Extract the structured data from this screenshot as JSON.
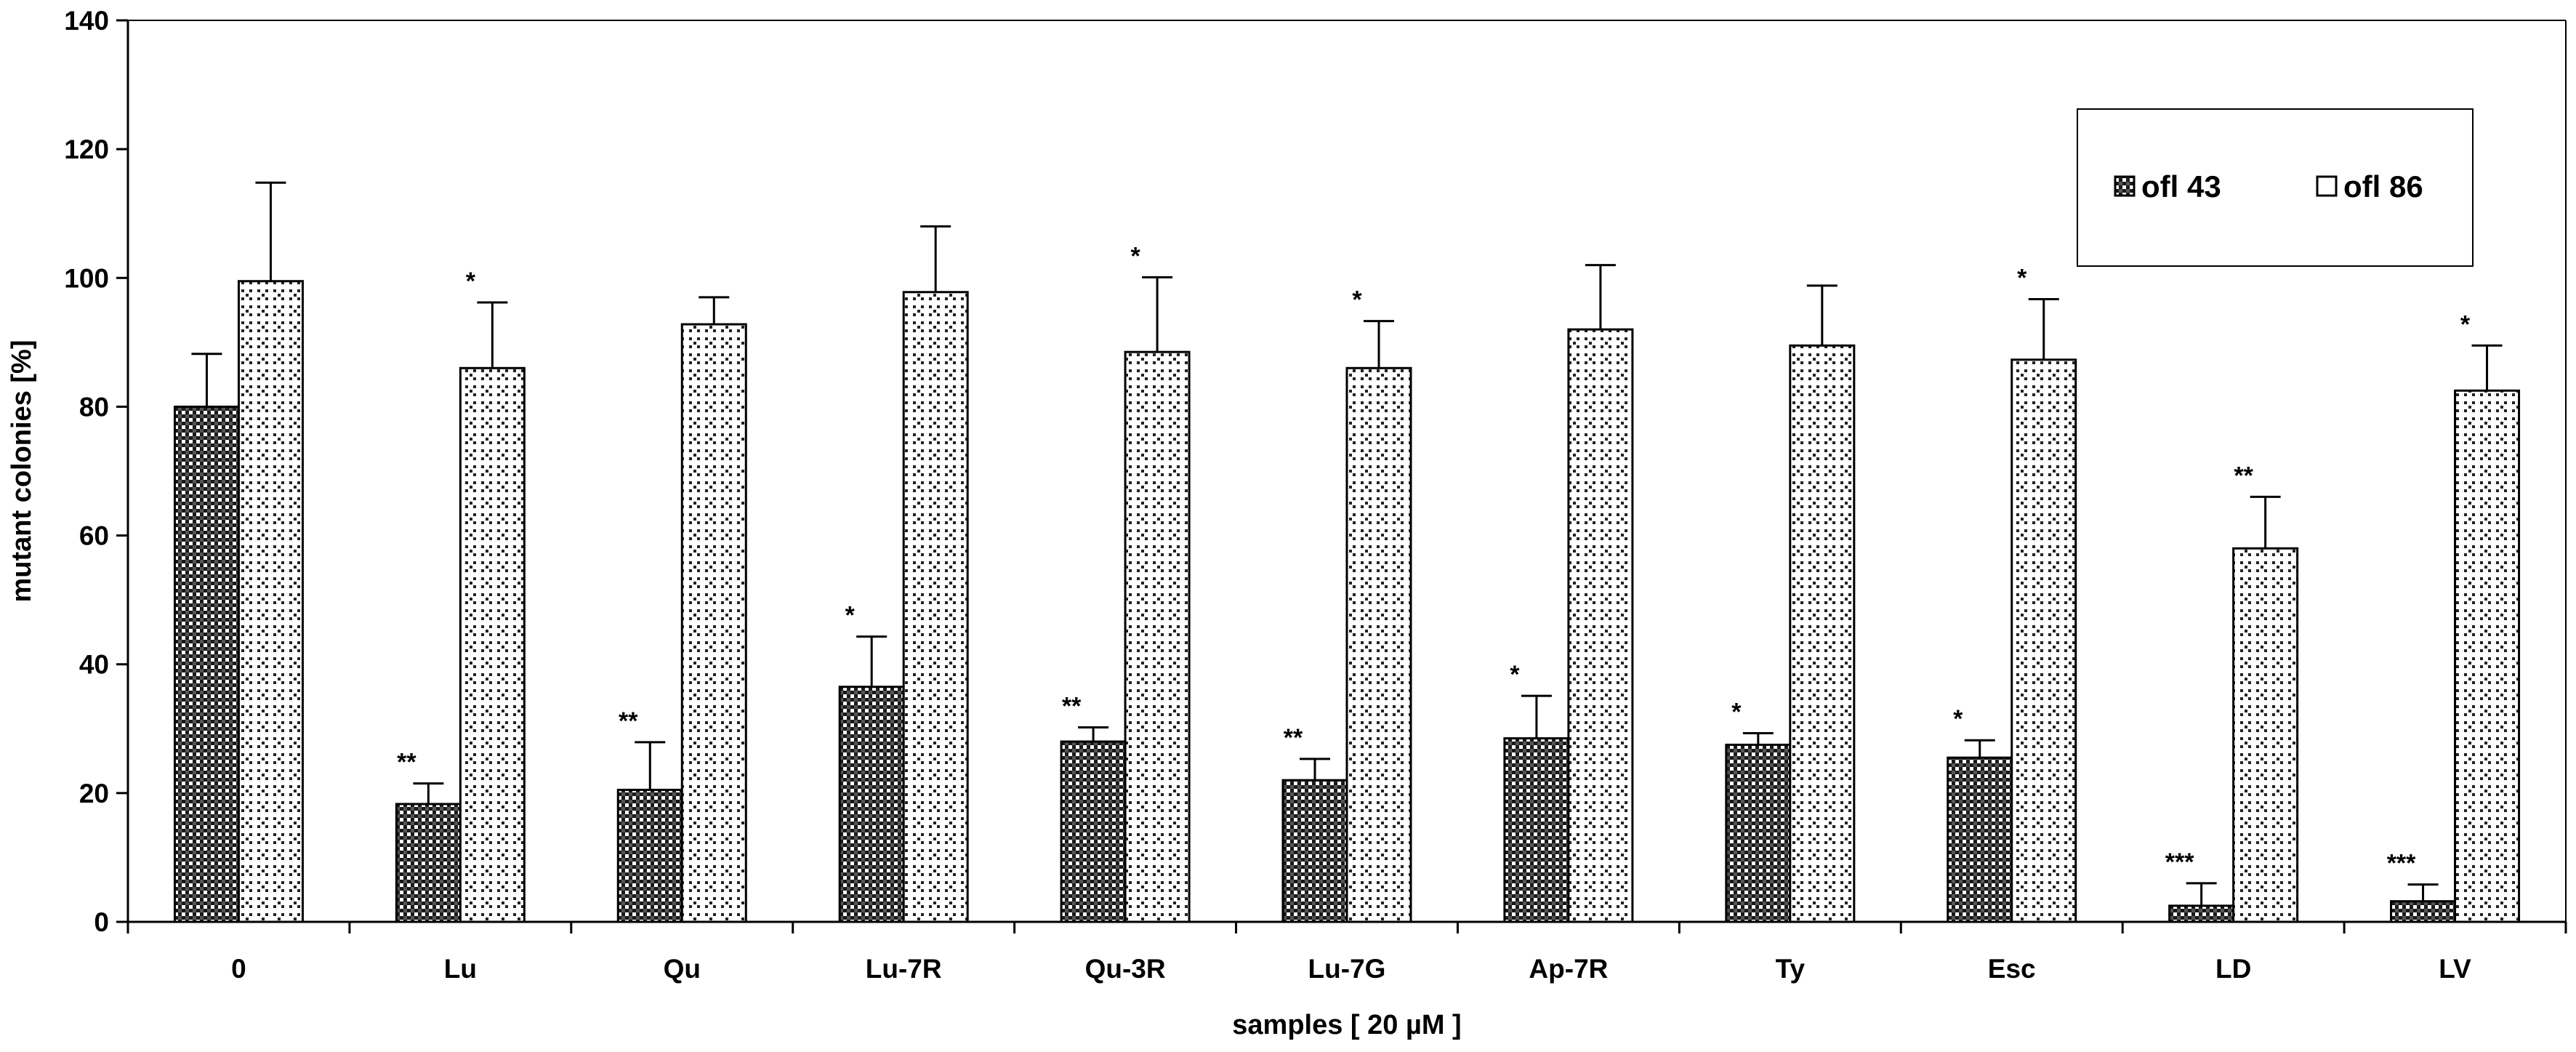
{
  "chart_data": {
    "type": "bar",
    "title": "",
    "xlabel": "samples [ 20 µM ]",
    "ylabel": "mutant colonies [%]",
    "ylim": [
      0,
      140
    ],
    "yticks": [
      "0",
      "20",
      "40",
      "60",
      "80",
      "100",
      "120",
      "140"
    ],
    "categories": [
      "0",
      "Lu",
      "Qu",
      "Lu-7R",
      "Qu-3R",
      "Lu-7G",
      "Ap-7R",
      "Ty",
      "Esc",
      "LD",
      "LV"
    ],
    "series": [
      {
        "name": "ofl 43",
        "pattern": "dense-checker",
        "values": [
          80,
          18.3,
          20.5,
          36.5,
          28,
          22,
          28.5,
          27.5,
          25.5,
          2.5,
          3.2
        ],
        "errors": [
          8.2,
          3.2,
          7.4,
          7.8,
          2.2,
          3.3,
          6.6,
          1.8,
          2.7,
          3.5,
          2.6
        ],
        "significance": [
          "",
          "**",
          "**",
          "*",
          "**",
          "**",
          "*",
          "*",
          "*",
          "***",
          "***"
        ]
      },
      {
        "name": "ofl 86",
        "pattern": "sparse-dots",
        "values": [
          99.5,
          86,
          92.8,
          97.8,
          88.5,
          86,
          92,
          89.5,
          87.3,
          58,
          82.5
        ],
        "errors": [
          15.3,
          10.2,
          4.2,
          10.2,
          11.6,
          7.3,
          10,
          9.3,
          9.4,
          8,
          7
        ],
        "significance": [
          "",
          "*",
          "",
          "",
          "*",
          "*",
          "",
          "",
          "*",
          "**",
          "*"
        ]
      }
    ],
    "legend": {
      "position": "top-right",
      "entries": [
        "ofl 43",
        "ofl 86"
      ]
    },
    "grid": false
  }
}
